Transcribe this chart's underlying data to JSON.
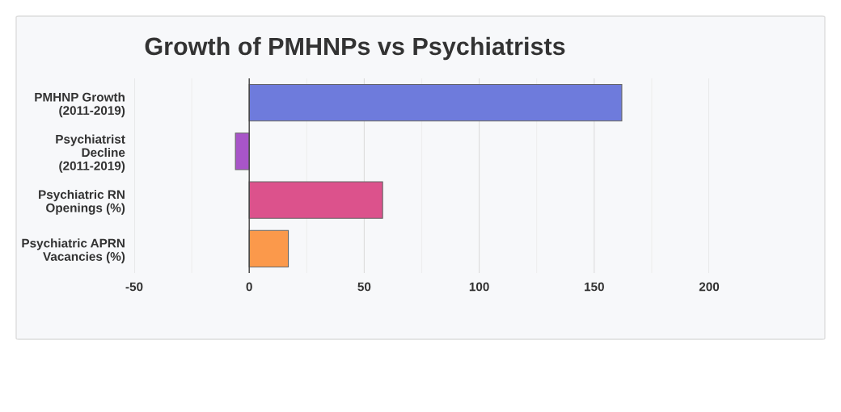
{
  "chart_data": {
    "type": "bar",
    "orientation": "horizontal",
    "title": "Growth of PMHNPs vs Psychiatrists",
    "categories": [
      "PMHNP Growth\n(2011-2019)",
      "Psychiatrist\nDecline\n(2011-2019)",
      "Psychiatric RN\nOpenings (%)",
      "Psychiatric APRN\nVacancies (%)"
    ],
    "values": [
      162,
      -6,
      58,
      17
    ],
    "colors": [
      "#6e7bdc",
      "#a855c8",
      "#dc528c",
      "#fb994b"
    ],
    "xlim": [
      -50,
      200
    ],
    "xticks": [
      -50,
      {
        "value": -25,
        "label": null
      },
      0,
      {
        "value": 25,
        "label": null
      },
      50,
      {
        "value": 75,
        "label": null
      },
      100,
      {
        "value": 125,
        "label": null
      },
      150,
      {
        "value": 175,
        "label": null
      },
      200
    ],
    "grid": "x"
  }
}
